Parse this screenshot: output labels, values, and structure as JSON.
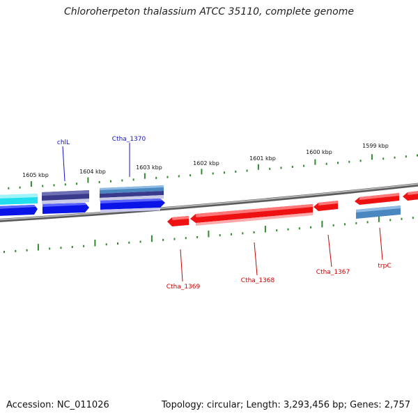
{
  "title": "Chloroherpeton thalassium ATCC 35110, complete genome",
  "footer": {
    "accession": "Accession: NC_011026",
    "summary": "Topology: circular; Length: 3,293,456 bp; Genes: 2,757"
  },
  "colors": {
    "backbone": "#8a8a8a",
    "ticks": "#2e8b2e",
    "forward_label": "#1010cc",
    "reverse_label": "#cc0000",
    "gene_cyan": "#22ddee",
    "gene_navy": "#3a3a8c",
    "gene_blue": "#0a14e6",
    "gene_steel": "#4a86c0",
    "gene_red": "#ee1111"
  },
  "scale_labels": [
    "1605 kbp",
    "1604 kbp",
    "1603 kbp",
    "1602 kbp",
    "1601 kbp",
    "1600 kbp",
    "1599 kbp"
  ],
  "gene_labels": {
    "forward": [
      "chlL",
      "Ctha_1370"
    ],
    "reverse": [
      "Ctha_1369",
      "Ctha_1368",
      "Ctha_1367",
      "trpC"
    ]
  }
}
